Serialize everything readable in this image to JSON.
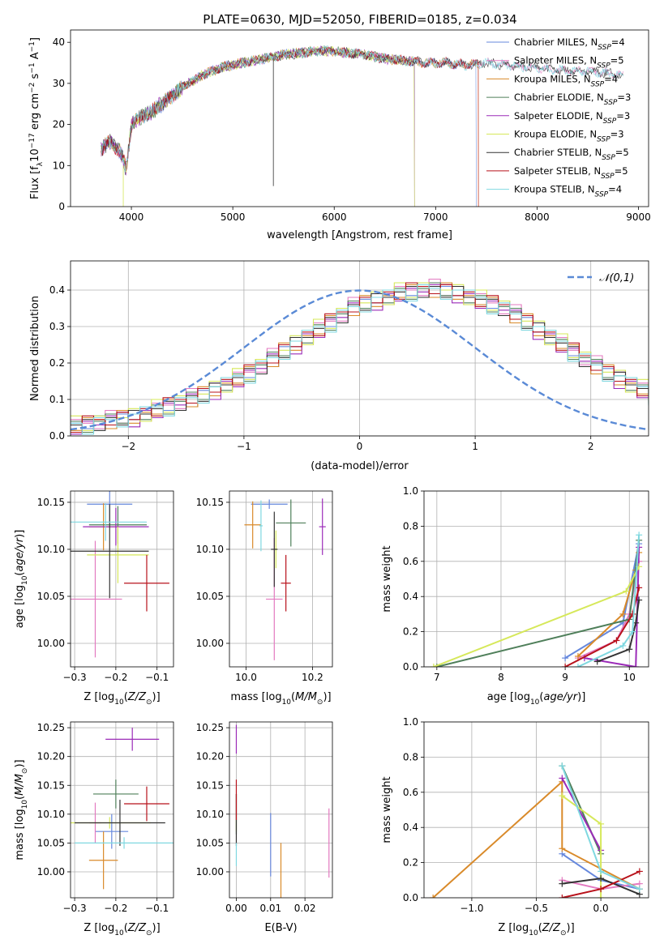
{
  "figure_title": "PLATE=0630, MJD=52050, FIBERID=0185, z=0.034",
  "series_colors": {
    "Chabrier MILES": "#6688dd",
    "Salpeter MILES": "#e37ac0",
    "Kroupa MILES": "#d98a2a",
    "Chabrier ELODIE": "#4f7f5a",
    "Salpeter ELODIE": "#9b2bb8",
    "Kroupa ELODIE": "#d6e85a",
    "Chabrier STELIB": "#333333",
    "Salpeter STELIB": "#b8121b",
    "Kroupa STELIB": "#7fd8e0"
  },
  "chart_data": [
    {
      "type": "line",
      "title": "PLATE=0630, MJD=52050, FIBERID=0185, z=0.034",
      "xlabel": "wavelength [Angstrom, rest frame]",
      "ylabel": "Flux [f_λ 10^-17 erg cm^-2 s^-1 A^-1]",
      "xlim": [
        3400,
        9100
      ],
      "ylim": [
        0,
        43
      ],
      "xticks": [
        "4000",
        "5000",
        "6000",
        "7000",
        "8000",
        "9000"
      ],
      "yticks": [
        "0",
        "10",
        "20",
        "30",
        "40"
      ],
      "grid": false,
      "legend": "top-right",
      "legend_entries": [
        "Chabrier MILES, N_SSP=4",
        "Salpeter MILES, N_SSP=5",
        "Kroupa MILES, N_SSP=4",
        "Chabrier ELODIE, N_SSP=3",
        "Salpeter ELODIE, N_SSP=3",
        "Kroupa ELODIE, N_SSP=3",
        "Chabrier STELIB, N_SSP=5",
        "Salpeter STELIB, N_SSP=5",
        "Kroupa STELIB, N_SSP=4"
      ],
      "continuum": {
        "x": [
          3700,
          3800,
          3900,
          3950,
          4000,
          4100,
          4200,
          4300,
          4400,
          4500,
          4700,
          4900,
          5100,
          5300,
          5500,
          5700,
          5900,
          6100,
          6300,
          6500,
          6700,
          6900,
          7100,
          7300,
          7500,
          7700,
          7900,
          8100,
          8300,
          8500,
          8700,
          8850
        ],
        "y": [
          14,
          16,
          13,
          9,
          20,
          22,
          23,
          25,
          27,
          29,
          32,
          34,
          35,
          36,
          37,
          37.5,
          38,
          37.5,
          37,
          36,
          35.5,
          35,
          35,
          34.5,
          35,
          34.5,
          34,
          33.5,
          33,
          33,
          32.5,
          32
        ]
      },
      "spectrum_segments": [
        {
          "series": "Chabrier MILES",
          "x_range": [
            3700,
            7400
          ]
        },
        {
          "series": "Salpeter MILES",
          "x_range": [
            3700,
            8850
          ]
        },
        {
          "series": "Kroupa MILES",
          "x_range": [
            3700,
            7420
          ]
        },
        {
          "series": "Chabrier ELODIE",
          "x_range": [
            3700,
            6790
          ]
        },
        {
          "series": "Salpeter ELODIE",
          "x_range": [
            3700,
            6790
          ]
        },
        {
          "series": "Kroupa ELODIE",
          "x_range": [
            3900,
            6790
          ]
        },
        {
          "series": "Chabrier STELIB",
          "x_range": [
            3700,
            8850
          ]
        },
        {
          "series": "Salpeter STELIB",
          "x_range": [
            3700,
            7420
          ]
        },
        {
          "series": "Kroupa STELIB",
          "x_range": [
            3700,
            8850
          ]
        }
      ]
    },
    {
      "type": "histogram",
      "xlabel": "(data-model)/error",
      "ylabel": "Normed distribution",
      "xlim": [
        -2.5,
        2.5
      ],
      "ylim": [
        0,
        0.48
      ],
      "xticks": [
        "−2",
        "−1",
        "0",
        "1",
        "2"
      ],
      "yticks": [
        "0.0",
        "0.1",
        "0.2",
        "0.3",
        "0.4"
      ],
      "grid": true,
      "legend": "top-right",
      "reference_curve": {
        "label": "𝒩(0,1)",
        "color": "#5a8ad6"
      },
      "bin_width": 0.1,
      "bins_start": -2.5,
      "series_base": [
        0.025,
        0.03,
        0.035,
        0.04,
        0.045,
        0.05,
        0.06,
        0.07,
        0.08,
        0.09,
        0.1,
        0.11,
        0.125,
        0.14,
        0.155,
        0.17,
        0.19,
        0.21,
        0.23,
        0.25,
        0.27,
        0.29,
        0.31,
        0.33,
        0.35,
        0.36,
        0.37,
        0.38,
        0.39,
        0.395,
        0.4,
        0.4,
        0.395,
        0.39,
        0.38,
        0.37,
        0.36,
        0.35,
        0.33,
        0.31,
        0.29,
        0.27,
        0.25,
        0.23,
        0.21,
        0.19,
        0.17,
        0.155,
        0.14,
        0.125,
        0.11,
        0.1,
        0.09,
        0.08,
        0.07,
        0.06,
        0.05,
        0.045,
        0.04,
        0.035
      ],
      "series_jitter": [
        [
          0.01,
          -0.01,
          0.02,
          -0.02,
          0.015,
          -0.005,
          0.01
        ],
        [
          0.02,
          0.005,
          -0.015,
          0.03,
          -0.01,
          0.02,
          -0.02
        ],
        [
          -0.01,
          0.02,
          0.01,
          -0.02,
          0.025,
          -0.015,
          0.005
        ],
        [
          0.015,
          -0.02,
          0.005,
          0.02,
          -0.01,
          0.01,
          -0.015
        ],
        [
          -0.02,
          0.01,
          -0.005,
          0.015,
          0.02,
          -0.025,
          0.01
        ],
        [
          0.03,
          -0.015,
          0.02,
          -0.01,
          0.005,
          0.025,
          -0.02
        ],
        [
          0.005,
          0.015,
          -0.02,
          0.01,
          -0.015,
          0.02,
          0.0
        ],
        [
          -0.015,
          0.025,
          0.01,
          -0.01,
          0.02,
          -0.005,
          0.015
        ],
        [
          0.01,
          -0.025,
          0.015,
          0.005,
          -0.02,
          0.01,
          0.02
        ]
      ]
    },
    {
      "type": "scatter",
      "panel": "age-vs-Z",
      "xlabel": "Z [log10(Z/Z⊙)]",
      "ylabel": "age  [log10(age/yr)]",
      "xlim": [
        -0.31,
        -0.06
      ],
      "ylim": [
        9.975,
        10.162
      ],
      "xticks": [
        "−0.3",
        "−0.2",
        "−0.1"
      ],
      "yticks": [
        "10.00",
        "10.05",
        "10.10",
        "10.15"
      ],
      "points": [
        {
          "series": "Chabrier MILES",
          "x": -0.215,
          "y": 10.148,
          "xerr": 0.055,
          "yerr": 0.02
        },
        {
          "series": "Salpeter MILES",
          "x": -0.25,
          "y": 10.047,
          "xerr": 0.065,
          "yerr": 0.062
        },
        {
          "series": "Kroupa MILES",
          "x": -0.23,
          "y": 10.124,
          "xerr": 0.035,
          "yerr": 0.025
        },
        {
          "series": "Chabrier ELODIE",
          "x": -0.195,
          "y": 10.126,
          "xerr": 0.07,
          "yerr": 0.02
        },
        {
          "series": "Salpeter ELODIE",
          "x": -0.2,
          "y": 10.124,
          "xerr": 0.08,
          "yerr": 0.02
        },
        {
          "series": "Kroupa ELODIE",
          "x": -0.195,
          "y": 10.094,
          "xerr": 0.075,
          "yerr": 0.03
        },
        {
          "series": "Chabrier STELIB",
          "x": -0.215,
          "y": 10.098,
          "xerr": 0.095,
          "yerr": 0.05
        },
        {
          "series": "Salpeter STELIB",
          "x": -0.125,
          "y": 10.064,
          "xerr": 0.055,
          "yerr": 0.03
        },
        {
          "series": "Kroupa STELIB",
          "x": -0.225,
          "y": 10.129,
          "xerr": 0.1,
          "yerr": 0.02
        }
      ]
    },
    {
      "type": "scatter",
      "panel": "age-vs-mass",
      "xlabel": "mass [log10(M/M⊙)]",
      "ylabel": "",
      "xlim": [
        9.95,
        10.26
      ],
      "ylim": [
        9.975,
        10.162
      ],
      "xticks": [
        "10.0",
        "10.2"
      ],
      "yticks": [
        "10.00",
        "10.05",
        "10.10",
        "10.15"
      ],
      "points": [
        {
          "series": "Chabrier MILES",
          "x": 10.07,
          "y": 10.148,
          "xerr": 0.055,
          "yerr": 0.005
        },
        {
          "series": "Salpeter MILES",
          "x": 10.085,
          "y": 10.047,
          "xerr": 0.025,
          "yerr": 0.065
        },
        {
          "series": "Kroupa MILES",
          "x": 10.02,
          "y": 10.126,
          "xerr": 0.025,
          "yerr": 0.025
        },
        {
          "series": "Chabrier ELODIE",
          "x": 10.135,
          "y": 10.128,
          "xerr": 0.045,
          "yerr": 0.025
        },
        {
          "series": "Salpeter ELODIE",
          "x": 10.23,
          "y": 10.124,
          "xerr": 0.01,
          "yerr": 0.03
        },
        {
          "series": "Kroupa ELODIE",
          "x": 10.09,
          "y": 10.1,
          "xerr": 0.005,
          "yerr": 0.02
        },
        {
          "series": "Chabrier STELIB",
          "x": 10.085,
          "y": 10.1,
          "xerr": 0.01,
          "yerr": 0.04
        },
        {
          "series": "Salpeter STELIB",
          "x": 10.12,
          "y": 10.064,
          "xerr": 0.015,
          "yerr": 0.03
        },
        {
          "series": "Kroupa STELIB",
          "x": 10.045,
          "y": 10.125,
          "xerr": 0.005,
          "yerr": 0.027
        }
      ]
    },
    {
      "type": "line",
      "panel": "mass-weight-vs-age",
      "xlabel": "age  [log10(age/yr)]",
      "ylabel": "mass weight",
      "xlim": [
        6.8,
        10.3
      ],
      "ylim": [
        0,
        1.0
      ],
      "xticks": [
        "7",
        "8",
        "9",
        "10"
      ],
      "yticks": [
        "0.0",
        "0.2",
        "0.4",
        "0.6",
        "0.8",
        "1.0"
      ],
      "grid": true,
      "series": [
        {
          "name": "Chabrier MILES",
          "x": [
            9.0,
            9.9,
            10.15
          ],
          "y": [
            0.05,
            0.25,
            0.7
          ]
        },
        {
          "name": "Salpeter MILES",
          "x": [
            9.2,
            9.8,
            10.0,
            10.15
          ],
          "y": [
            0.05,
            0.15,
            0.3,
            0.6
          ]
        },
        {
          "name": "Kroupa MILES",
          "x": [
            9.2,
            9.9,
            10.1,
            10.15
          ],
          "y": [
            0.06,
            0.3,
            0.55,
            0.65
          ]
        },
        {
          "name": "Chabrier ELODIE",
          "x": [
            7.0,
            10.0,
            10.15
          ],
          "y": [
            0.0,
            0.27,
            0.72
          ]
        },
        {
          "name": "Salpeter ELODIE",
          "x": [
            9.3,
            10.1,
            10.15
          ],
          "y": [
            0.05,
            0.0,
            0.68
          ]
        },
        {
          "name": "Kroupa ELODIE",
          "x": [
            6.95,
            9.95,
            10.15
          ],
          "y": [
            0.0,
            0.43,
            0.57
          ]
        },
        {
          "name": "Chabrier STELIB",
          "x": [
            9.5,
            10.0,
            10.1,
            10.15
          ],
          "y": [
            0.03,
            0.1,
            0.25,
            0.38
          ]
        },
        {
          "name": "Salpeter STELIB",
          "x": [
            9.0,
            9.8,
            10.05,
            10.15
          ],
          "y": [
            0.0,
            0.15,
            0.3,
            0.45
          ]
        },
        {
          "name": "Kroupa STELIB",
          "x": [
            9.2,
            9.9,
            10.05,
            10.15
          ],
          "y": [
            0.0,
            0.12,
            0.2,
            0.75
          ]
        }
      ]
    },
    {
      "type": "scatter",
      "panel": "mass-vs-Z",
      "xlabel": "Z [log10(Z/Z⊙)]",
      "ylabel": "mass [log10(M/M⊙)]",
      "xlim": [
        -0.31,
        -0.06
      ],
      "ylim": [
        9.955,
        10.26
      ],
      "xticks": [
        "−0.3",
        "−0.2",
        "−0.1"
      ],
      "yticks": [
        "10.00",
        "10.05",
        "10.10",
        "10.15",
        "10.20",
        "10.25"
      ],
      "points": [
        {
          "series": "Chabrier MILES",
          "x": -0.21,
          "y": 10.07,
          "xerr": 0.04,
          "yerr": 0.03
        },
        {
          "series": "Salpeter MILES",
          "x": -0.25,
          "y": 10.085,
          "xerr": 0.015,
          "yerr": 0.035
        },
        {
          "series": "Kroupa MILES",
          "x": -0.23,
          "y": 10.02,
          "xerr": 0.035,
          "yerr": 0.05
        },
        {
          "series": "Chabrier ELODIE",
          "x": -0.2,
          "y": 10.135,
          "xerr": 0.055,
          "yerr": 0.025
        },
        {
          "series": "Salpeter ELODIE",
          "x": -0.16,
          "y": 10.23,
          "xerr": 0.065,
          "yerr": 0.02
        },
        {
          "series": "Kroupa ELODIE",
          "x": -0.215,
          "y": 10.085,
          "xerr": 0.1,
          "yerr": 0.01
        },
        {
          "series": "Chabrier STELIB",
          "x": -0.19,
          "y": 10.085,
          "xerr": 0.11,
          "yerr": 0.04
        },
        {
          "series": "Salpeter STELIB",
          "x": -0.125,
          "y": 10.118,
          "xerr": 0.055,
          "yerr": 0.03
        },
        {
          "series": "Kroupa STELIB",
          "x": -0.18,
          "y": 10.05,
          "xerr": 0.12,
          "yerr": 0.01
        }
      ]
    },
    {
      "type": "scatter",
      "panel": "mass-vs-EBV",
      "xlabel": "E(B-V)",
      "ylabel": "",
      "xlim": [
        -0.002,
        0.028
      ],
      "ylim": [
        9.955,
        10.26
      ],
      "xticks": [
        "0.00",
        "0.01",
        "0.02"
      ],
      "yticks": [
        "10.00",
        "10.05",
        "10.10",
        "10.15",
        "10.20",
        "10.25"
      ],
      "points": [
        {
          "series": "Chabrier MILES",
          "x": 0.01,
          "y": 10.047,
          "xerr": 0.0,
          "yerr": 0.055
        },
        {
          "series": "Salpeter MILES",
          "x": 0.027,
          "y": 10.05,
          "xerr": 0.0,
          "yerr": 0.06
        },
        {
          "series": "Kroupa MILES",
          "x": 0.013,
          "y": 10.0,
          "xerr": 0.0,
          "yerr": 0.05
        },
        {
          "series": "Chabrier ELODIE",
          "x": 0.0,
          "y": 10.1,
          "xerr": 0.0,
          "yerr": 0.035
        },
        {
          "series": "Salpeter ELODIE",
          "x": 0.0,
          "y": 10.23,
          "xerr": 0.0,
          "yerr": 0.025
        },
        {
          "series": "Kroupa ELODIE",
          "x": 0.0,
          "y": 10.08,
          "xerr": 0.0,
          "yerr": 0.01
        },
        {
          "series": "Chabrier STELIB",
          "x": 0.0,
          "y": 10.09,
          "xerr": 0.0,
          "yerr": 0.045
        },
        {
          "series": "Salpeter STELIB",
          "x": 0.0,
          "y": 10.125,
          "xerr": 0.0,
          "yerr": 0.035
        },
        {
          "series": "Kroupa STELIB",
          "x": 0.0,
          "y": 10.03,
          "xerr": 0.0,
          "yerr": 0.02
        }
      ]
    },
    {
      "type": "line",
      "panel": "mass-weight-vs-Z",
      "xlabel": "Z [log10(Z/Z⊙)]",
      "ylabel": "mass weight",
      "xlim": [
        -1.37,
        0.37
      ],
      "ylim": [
        0,
        1.0
      ],
      "xticks": [
        "−1.0",
        "−0.5",
        "0.0"
      ],
      "yticks": [
        "0.0",
        "0.2",
        "0.4",
        "0.6",
        "0.8",
        "1.0"
      ],
      "grid": true,
      "series": [
        {
          "name": "Chabrier MILES",
          "x": [
            -0.3,
            0.0,
            0.3
          ],
          "y": [
            0.25,
            0.1,
            0.05
          ]
        },
        {
          "name": "Salpeter MILES",
          "x": [
            -0.3,
            0.0,
            0.3
          ],
          "y": [
            0.1,
            0.05,
            0.08
          ]
        },
        {
          "name": "Kroupa MILES",
          "x": [
            -1.3,
            -0.3,
            -0.3,
            0.3
          ],
          "y": [
            0.0,
            0.66,
            0.28,
            0.05
          ]
        },
        {
          "name": "Chabrier ELODIE",
          "x": [
            -0.3,
            0.0
          ],
          "y": [
            0.75,
            0.25
          ]
        },
        {
          "name": "Salpeter ELODIE",
          "x": [
            -0.3,
            0.0
          ],
          "y": [
            0.68,
            0.27
          ]
        },
        {
          "name": "Kroupa ELODIE",
          "x": [
            -0.3,
            0.0,
            0.0
          ],
          "y": [
            0.58,
            0.42,
            0.0
          ]
        },
        {
          "name": "Chabrier STELIB",
          "x": [
            -0.3,
            0.0,
            0.3
          ],
          "y": [
            0.08,
            0.11,
            0.02
          ]
        },
        {
          "name": "Salpeter STELIB",
          "x": [
            -0.3,
            0.0,
            0.3
          ],
          "y": [
            0.0,
            0.05,
            0.15
          ]
        },
        {
          "name": "Kroupa STELIB",
          "x": [
            -0.3,
            0.0,
            0.3
          ],
          "y": [
            0.75,
            0.15,
            0.05
          ]
        }
      ]
    }
  ]
}
